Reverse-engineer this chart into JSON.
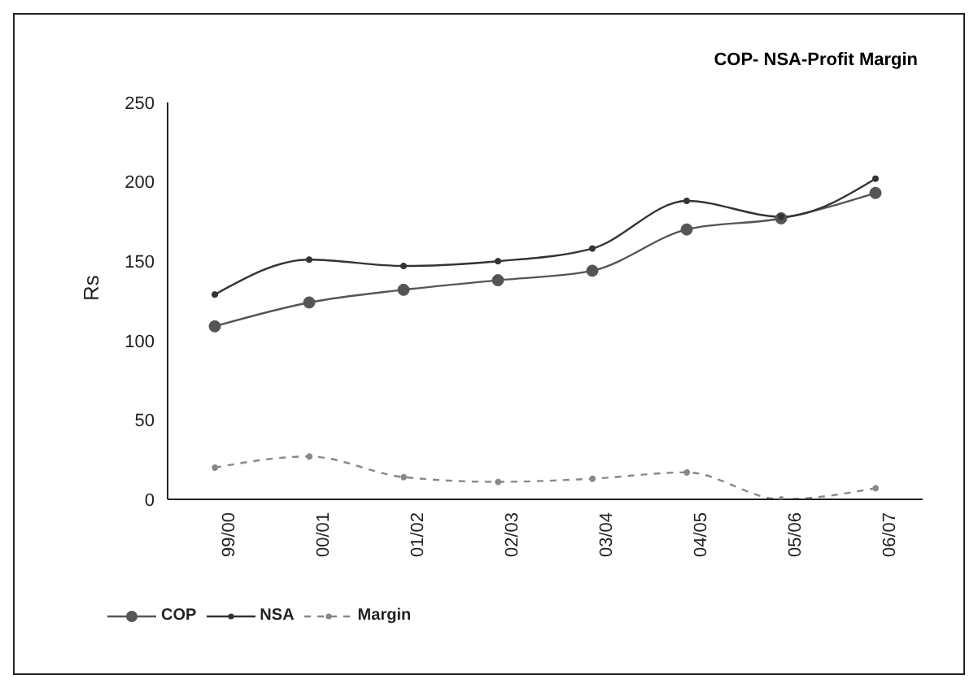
{
  "chart_data": {
    "type": "line",
    "title": "COP- NSA-Profit Margin",
    "ylabel": "Rs",
    "categories": [
      "99/00",
      "00/01",
      "01/02",
      "02/03",
      "03/04",
      "04/05",
      "05/06",
      "06/07"
    ],
    "ylim": [
      0,
      250
    ],
    "yticks": [
      0,
      50,
      100,
      150,
      200,
      250
    ],
    "grid": false,
    "legend": "bottom left",
    "series": [
      {
        "name": "COP",
        "color": "#555555",
        "marker": "circle",
        "line_style": "solid",
        "values": [
          109,
          124,
          132,
          138,
          144,
          170,
          177,
          193
        ]
      },
      {
        "name": "NSA",
        "color": "#333333",
        "marker": "circle",
        "line_style": "solid",
        "values": [
          129,
          151,
          147,
          150,
          158,
          188,
          178,
          202
        ]
      },
      {
        "name": "Margin",
        "color": "#888888",
        "marker": "circle",
        "line_style": "dashed",
        "values": [
          20,
          27,
          14,
          11,
          13,
          17,
          0,
          7
        ]
      }
    ]
  }
}
